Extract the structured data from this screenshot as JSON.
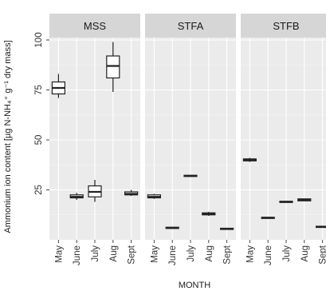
{
  "chart_data": {
    "type": "boxplot",
    "facets": [
      "MSS",
      "STFA",
      "STFB"
    ],
    "categories": [
      "May",
      "June",
      "July",
      "Aug",
      "Sept"
    ],
    "xlabel": "MONTH",
    "ylabel": "Ammonium ion content [µg N-NH₄⁺ g⁻¹ dry mass]",
    "ylim": [
      0,
      100
    ],
    "yticks": [
      25,
      50,
      75,
      100
    ],
    "grid": true,
    "panels": [
      {
        "facet": "MSS",
        "boxes": [
          {
            "x": "May",
            "min": 71,
            "q1": 73,
            "median": 76,
            "q3": 79,
            "max": 83
          },
          {
            "x": "June",
            "min": 20,
            "q1": 21,
            "median": 21.5,
            "q3": 22.5,
            "max": 23.5
          },
          {
            "x": "July",
            "min": 19,
            "q1": 21.5,
            "median": 24,
            "q3": 27,
            "max": 30
          },
          {
            "x": "Aug",
            "min": 74,
            "q1": 81,
            "median": 87,
            "q3": 92,
            "max": 99
          },
          {
            "x": "Sept",
            "min": 22,
            "q1": 22.5,
            "median": 23,
            "q3": 24,
            "max": 25
          }
        ]
      },
      {
        "facet": "STFA",
        "boxes": [
          {
            "x": "May",
            "min": 20.5,
            "q1": 21,
            "median": 21.5,
            "q3": 22.5,
            "max": 23
          },
          {
            "x": "June",
            "min": 6,
            "q1": 6,
            "median": 6,
            "q3": 6,
            "max": 6
          },
          {
            "x": "July",
            "min": 32,
            "q1": 32,
            "median": 32,
            "q3": 32,
            "max": 32
          },
          {
            "x": "Aug",
            "min": 12,
            "q1": 12.5,
            "median": 13,
            "q3": 13.5,
            "max": 14
          },
          {
            "x": "Sept",
            "min": 5.5,
            "q1": 5.5,
            "median": 5.5,
            "q3": 5.5,
            "max": 5.5
          }
        ]
      },
      {
        "facet": "STFB",
        "boxes": [
          {
            "x": "May",
            "min": 39,
            "q1": 39.5,
            "median": 40,
            "q3": 40.5,
            "max": 41
          },
          {
            "x": "June",
            "min": 11,
            "q1": 11,
            "median": 11,
            "q3": 11,
            "max": 11
          },
          {
            "x": "July",
            "min": 19,
            "q1": 19,
            "median": 19,
            "q3": 19,
            "max": 19
          },
          {
            "x": "Aug",
            "min": 19.5,
            "q1": 19.5,
            "median": 20,
            "q3": 20.5,
            "max": 20.5
          },
          {
            "x": "Sept",
            "min": 6.5,
            "q1": 6.5,
            "median": 6.5,
            "q3": 6.5,
            "max": 6.5
          }
        ]
      }
    ]
  },
  "colors": {
    "panel_background": "#ebebeb",
    "strip_background": "#d6d6d6",
    "grid": "#ffffff",
    "box_fill": "#ffffff",
    "box_stroke": "#222222"
  }
}
